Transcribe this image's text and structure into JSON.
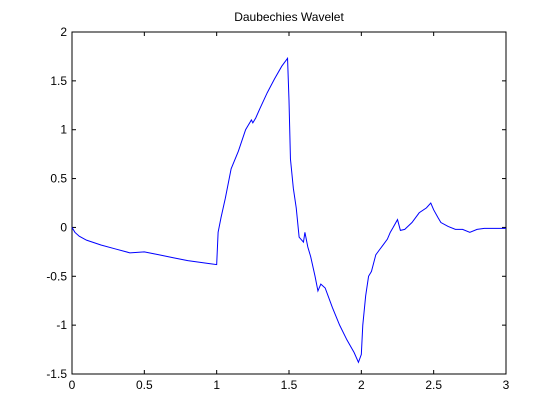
{
  "chart_data": {
    "type": "line",
    "title": "Daubechies Wavelet",
    "xlabel": "",
    "ylabel": "",
    "xlim": [
      0,
      3
    ],
    "ylim": [
      -1.5,
      2
    ],
    "xticks": [
      0,
      0.5,
      1,
      1.5,
      2,
      2.5,
      3
    ],
    "xtick_labels": [
      "0",
      "0.5",
      "1",
      "1.5",
      "2",
      "2.5",
      "3"
    ],
    "yticks": [
      -1.5,
      -1,
      -0.5,
      0,
      0.5,
      1,
      1.5,
      2
    ],
    "ytick_labels": [
      "-1.5",
      "-1",
      "-0.5",
      "0",
      "0.5",
      "1",
      "1.5",
      "2"
    ],
    "grid": false,
    "legend": "none",
    "line_color": "#0000ff",
    "series": [
      {
        "x": [
          0,
          0.02,
          0.05,
          0.1,
          0.2,
          0.3,
          0.4,
          0.5,
          0.6,
          0.7,
          0.8,
          0.9,
          0.95,
          1.0,
          1.01,
          1.03,
          1.06,
          1.1,
          1.15,
          1.2,
          1.24,
          1.25,
          1.27,
          1.3,
          1.35,
          1.4,
          1.45,
          1.49,
          1.5,
          1.51,
          1.53,
          1.55,
          1.57,
          1.6,
          1.61,
          1.63,
          1.65,
          1.68,
          1.7,
          1.72,
          1.75,
          1.77,
          1.8,
          1.85,
          1.9,
          1.95,
          1.98,
          2.0,
          2.01,
          2.03,
          2.05,
          2.07,
          2.1,
          2.12,
          2.15,
          2.18,
          2.2,
          2.22,
          2.25,
          2.27,
          2.3,
          2.35,
          2.4,
          2.45,
          2.48,
          2.5,
          2.53,
          2.55,
          2.6,
          2.65,
          2.7,
          2.75,
          2.8,
          2.85,
          2.9,
          2.95,
          3.0
        ],
        "y": [
          0,
          -0.05,
          -0.09,
          -0.13,
          -0.18,
          -0.22,
          -0.26,
          -0.25,
          -0.28,
          -0.31,
          -0.34,
          -0.36,
          -0.37,
          -0.38,
          -0.05,
          0.1,
          0.3,
          0.6,
          0.78,
          1.0,
          1.1,
          1.07,
          1.12,
          1.22,
          1.38,
          1.52,
          1.65,
          1.73,
          1.3,
          0.7,
          0.4,
          0.2,
          -0.1,
          -0.15,
          -0.05,
          -0.2,
          -0.3,
          -0.5,
          -0.65,
          -0.58,
          -0.62,
          -0.7,
          -0.82,
          -1.0,
          -1.15,
          -1.28,
          -1.38,
          -1.3,
          -1.0,
          -0.7,
          -0.5,
          -0.45,
          -0.28,
          -0.24,
          -0.18,
          -0.12,
          -0.05,
          0.0,
          0.08,
          -0.03,
          -0.02,
          0.05,
          0.15,
          0.2,
          0.25,
          0.18,
          0.1,
          0.05,
          0.01,
          -0.02,
          -0.02,
          -0.05,
          -0.02,
          -0.01,
          -0.01,
          -0.01,
          -0.01
        ]
      }
    ]
  }
}
